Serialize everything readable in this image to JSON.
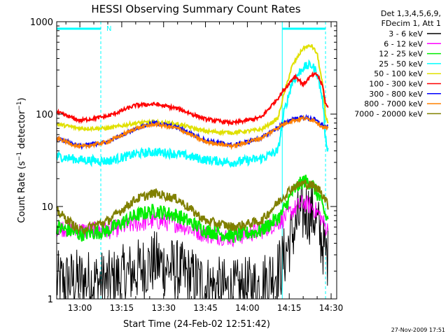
{
  "chart_data": {
    "type": "line",
    "title": "HESSI Observing Summary Count Rates",
    "xlabel": "Start Time (24-Feb-02 12:51:42)",
    "ylabel": "Count Rate (s⁻¹ detector⁻¹)",
    "ylabel_parts": {
      "pre": "Count Rate (s",
      "sup1": "−1",
      "mid": " detector",
      "sup2": "−1",
      "post": ")"
    },
    "y_scale": "log",
    "ylim": [
      1,
      1000
    ],
    "xlim": [
      "12:51:42",
      "14:32:00"
    ],
    "ytick_labels": [
      "1",
      "10",
      "100",
      "1000"
    ],
    "xtick_labels": [
      "13:00",
      "13:15",
      "13:30",
      "13:45",
      "14:00",
      "14:15",
      "14:30"
    ],
    "legend_header": [
      "Det 1,3,4,5,6,9,",
      "FDecim 1, Att 1"
    ],
    "legend_placement": "right",
    "footer_date": "27-Nov-2009 17:51",
    "annotations": {
      "night_marker": "N"
    },
    "intervals": [
      {
        "start": "12:51:42",
        "end": "13:07:30",
        "label": "N"
      },
      {
        "start": "14:12:30",
        "end": "14:28:00",
        "label": ""
      }
    ],
    "series": [
      {
        "name": "3 - 6 keV",
        "color": "#000000",
        "noise": 0.35,
        "points": [
          [
            "12:51:42",
            1.5
          ],
          [
            "13:00",
            1.6
          ],
          [
            "13:10",
            1.5
          ],
          [
            "13:20",
            2.0
          ],
          [
            "13:27",
            2.5
          ],
          [
            "13:35",
            2.0
          ],
          [
            "13:45",
            1.4
          ],
          [
            "13:55",
            1.2
          ],
          [
            "14:05",
            1.4
          ],
          [
            "14:12",
            2.2
          ],
          [
            "14:16",
            5
          ],
          [
            "14:19",
            8
          ],
          [
            "14:21",
            9
          ],
          [
            "14:24",
            8
          ],
          [
            "14:26",
            5
          ],
          [
            "14:28",
            3.2
          ],
          [
            "14:29",
            2.8
          ]
        ]
      },
      {
        "name": "6 - 12 keV",
        "color": "#ff00ff",
        "noise": 0.1,
        "points": [
          [
            "12:51:42",
            6
          ],
          [
            "13:00",
            5.5
          ],
          [
            "13:10",
            5.5
          ],
          [
            "13:20",
            6.5
          ],
          [
            "13:27",
            7
          ],
          [
            "13:35",
            6.5
          ],
          [
            "13:45",
            5.0
          ],
          [
            "13:55",
            4.6
          ],
          [
            "14:05",
            5.5
          ],
          [
            "14:12",
            7
          ],
          [
            "14:16",
            9
          ],
          [
            "14:20",
            11
          ],
          [
            "14:23",
            10
          ],
          [
            "14:26",
            8
          ],
          [
            "14:28",
            6
          ],
          [
            "14:29",
            5.5
          ]
        ]
      },
      {
        "name": "12 - 25 keV",
        "color": "#00ee00",
        "noise": 0.08,
        "points": [
          [
            "12:51:42",
            6
          ],
          [
            "13:00",
            5
          ],
          [
            "13:10",
            5.5
          ],
          [
            "13:20",
            8
          ],
          [
            "13:27",
            9
          ],
          [
            "13:35",
            8
          ],
          [
            "13:45",
            5.5
          ],
          [
            "13:55",
            4.8
          ],
          [
            "14:05",
            5.5
          ],
          [
            "14:12",
            8
          ],
          [
            "14:16",
            14
          ],
          [
            "14:20",
            19
          ],
          [
            "14:23",
            18
          ],
          [
            "14:26",
            12
          ],
          [
            "14:28",
            8
          ],
          [
            "14:29",
            7
          ]
        ]
      },
      {
        "name": "25 - 50 keV",
        "color": "#00ffff",
        "noise": 0.05,
        "points": [
          [
            "12:51:42",
            35
          ],
          [
            "13:00",
            32
          ],
          [
            "13:10",
            31
          ],
          [
            "13:20",
            37
          ],
          [
            "13:27",
            39
          ],
          [
            "13:35",
            37
          ],
          [
            "13:45",
            32
          ],
          [
            "13:55",
            30
          ],
          [
            "14:05",
            33
          ],
          [
            "14:11",
            40
          ],
          [
            "14:13",
            100
          ],
          [
            "14:16",
            220
          ],
          [
            "14:20",
            320
          ],
          [
            "14:23",
            340
          ],
          [
            "14:25",
            280
          ],
          [
            "14:27",
            140
          ],
          [
            "14:28",
            55
          ],
          [
            "14:29",
            40
          ]
        ]
      },
      {
        "name": "50 - 100 keV",
        "color": "#e0e000",
        "noise": 0.02,
        "points": [
          [
            "12:51:42",
            78
          ],
          [
            "13:00",
            70
          ],
          [
            "13:10",
            70
          ],
          [
            "13:20",
            80
          ],
          [
            "13:27",
            82
          ],
          [
            "13:35",
            78
          ],
          [
            "13:45",
            65
          ],
          [
            "13:55",
            63
          ],
          [
            "14:05",
            68
          ],
          [
            "14:11",
            90
          ],
          [
            "14:13",
            160
          ],
          [
            "14:16",
            330
          ],
          [
            "14:20",
            520
          ],
          [
            "14:23",
            550
          ],
          [
            "14:25",
            450
          ],
          [
            "14:27",
            200
          ],
          [
            "14:28",
            95
          ],
          [
            "14:29",
            80
          ]
        ]
      },
      {
        "name": "100 - 300 keV",
        "color": "#ff0000",
        "noise": 0.02,
        "points": [
          [
            "12:51:42",
            105
          ],
          [
            "13:00",
            85
          ],
          [
            "13:10",
            95
          ],
          [
            "13:20",
            125
          ],
          [
            "13:27",
            128
          ],
          [
            "13:35",
            115
          ],
          [
            "13:45",
            88
          ],
          [
            "13:55",
            80
          ],
          [
            "14:05",
            92
          ],
          [
            "14:11",
            150
          ],
          [
            "14:13",
            180
          ],
          [
            "14:17",
            260
          ],
          [
            "14:20",
            210
          ],
          [
            "14:23",
            260
          ],
          [
            "14:25",
            270
          ],
          [
            "14:27",
            200
          ],
          [
            "14:28",
            130
          ],
          [
            "14:29",
            115
          ]
        ]
      },
      {
        "name": "300 - 800 keV",
        "color": "#0000ff",
        "noise": 0.02,
        "points": [
          [
            "12:51:42",
            55
          ],
          [
            "13:00",
            45
          ],
          [
            "13:10",
            50
          ],
          [
            "13:20",
            70
          ],
          [
            "13:27",
            80
          ],
          [
            "13:35",
            72
          ],
          [
            "13:45",
            52
          ],
          [
            "13:55",
            46
          ],
          [
            "14:05",
            55
          ],
          [
            "14:12",
            75
          ],
          [
            "14:16",
            88
          ],
          [
            "14:20",
            92
          ],
          [
            "14:24",
            88
          ],
          [
            "14:27",
            75
          ],
          [
            "14:29",
            72
          ]
        ]
      },
      {
        "name": "800 - 7000 keV",
        "color": "#ff8000",
        "noise": 0.02,
        "points": [
          [
            "12:51:42",
            55
          ],
          [
            "13:00",
            44
          ],
          [
            "13:10",
            50
          ],
          [
            "13:20",
            70
          ],
          [
            "13:27",
            78
          ],
          [
            "13:35",
            70
          ],
          [
            "13:45",
            50
          ],
          [
            "13:55",
            45
          ],
          [
            "14:05",
            55
          ],
          [
            "14:12",
            75
          ],
          [
            "14:16",
            85
          ],
          [
            "14:20",
            90
          ],
          [
            "14:24",
            86
          ],
          [
            "14:27",
            72
          ],
          [
            "14:29",
            70
          ]
        ]
      },
      {
        "name": "7000 - 20000 keV",
        "color": "#808000",
        "noise": 0.05,
        "points": [
          [
            "12:51:42",
            9
          ],
          [
            "13:00",
            5.5
          ],
          [
            "13:10",
            7
          ],
          [
            "13:20",
            12
          ],
          [
            "13:27",
            14
          ],
          [
            "13:35",
            12
          ],
          [
            "13:45",
            7
          ],
          [
            "13:55",
            6
          ],
          [
            "14:05",
            7
          ],
          [
            "14:12",
            12
          ],
          [
            "14:16",
            16
          ],
          [
            "14:20",
            18
          ],
          [
            "14:23",
            17
          ],
          [
            "14:26",
            15
          ],
          [
            "14:28",
            12
          ],
          [
            "14:29",
            10
          ]
        ]
      }
    ]
  }
}
